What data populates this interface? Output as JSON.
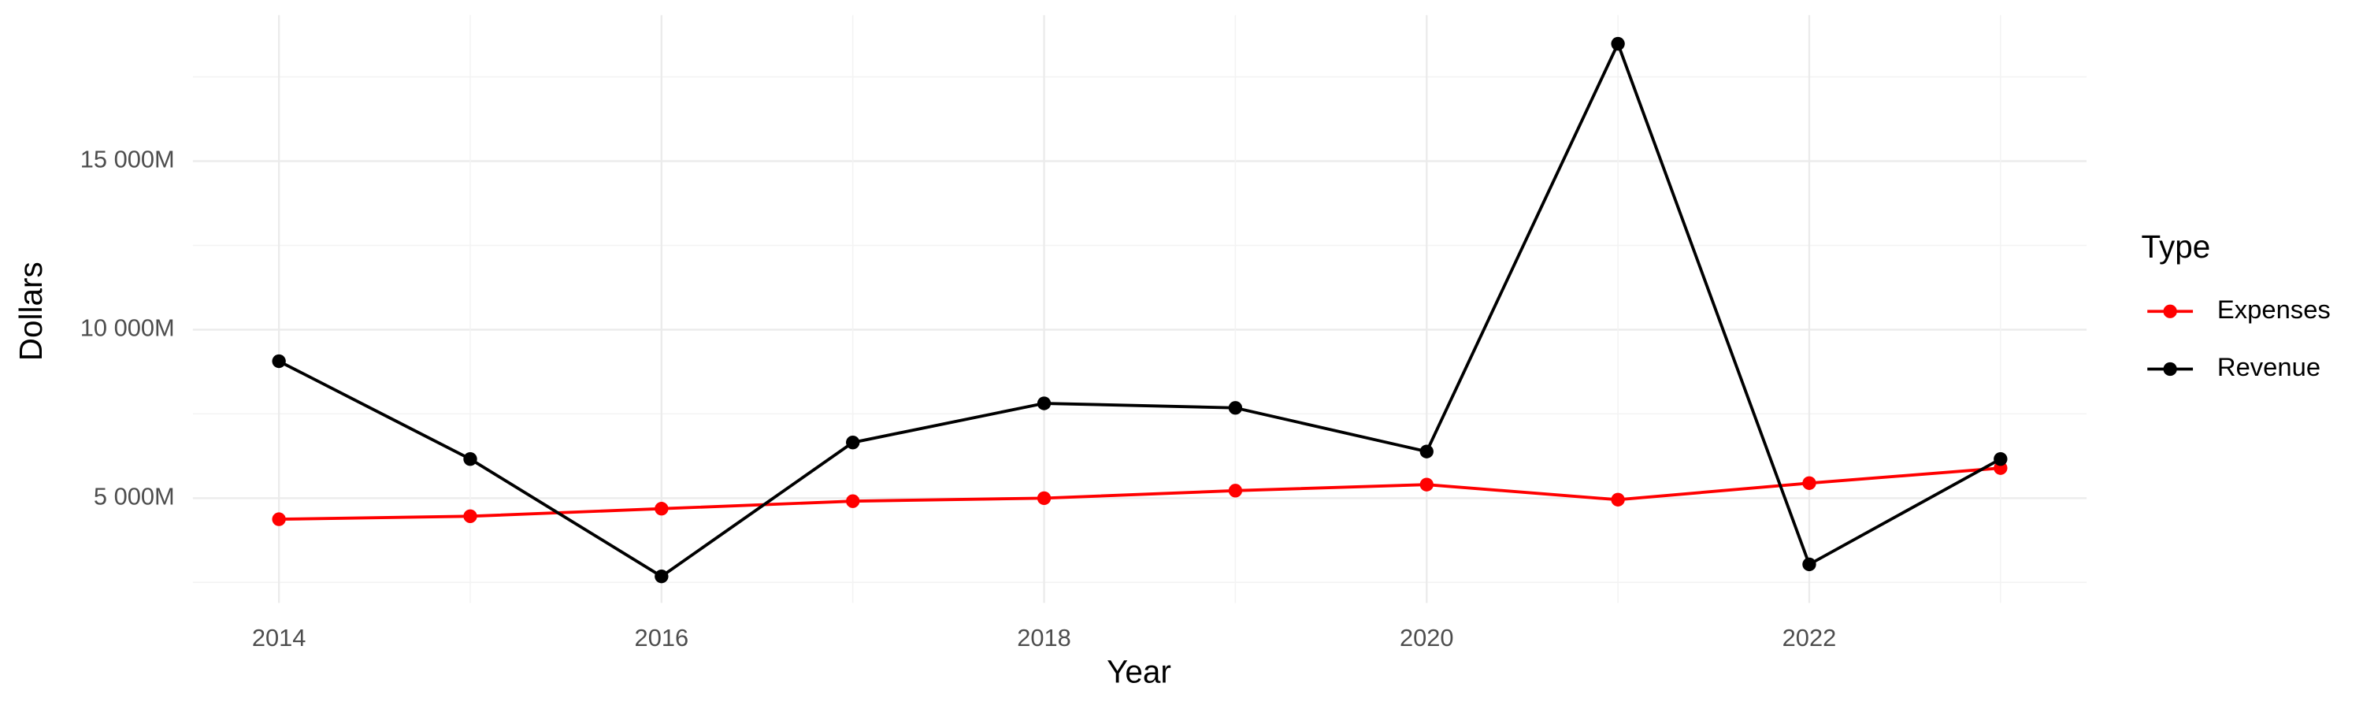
{
  "chart_data": {
    "type": "line",
    "x_label": "Year",
    "y_label": "Dollars",
    "x": [
      2014,
      2015,
      2016,
      2017,
      2018,
      2019,
      2020,
      2021,
      2022,
      2023
    ],
    "series": [
      {
        "name": "Expenses",
        "color": "#ff0000",
        "values": [
          4375,
          4464,
          4688,
          4911,
          5000,
          5223,
          5402,
          4955,
          5446,
          5893
        ]
      },
      {
        "name": "Revenue",
        "color": "#000000",
        "values": [
          9063,
          6161,
          2679,
          6652,
          7813,
          7679,
          6384,
          18482,
          3036,
          6161
        ]
      }
    ],
    "xlim": [
      2013.55,
      2023.45
    ],
    "xticks": [
      2014,
      2016,
      2018,
      2020,
      2022
    ],
    "ylim": [
      1890,
      19330
    ],
    "yticks": [
      {
        "value": 5000,
        "label": "5 000M"
      },
      {
        "value": 10000,
        "label": "10 000M"
      },
      {
        "value": 15000,
        "label": "15 000M"
      }
    ],
    "grid": true,
    "legend_title": "Type",
    "legend_position": "right"
  }
}
